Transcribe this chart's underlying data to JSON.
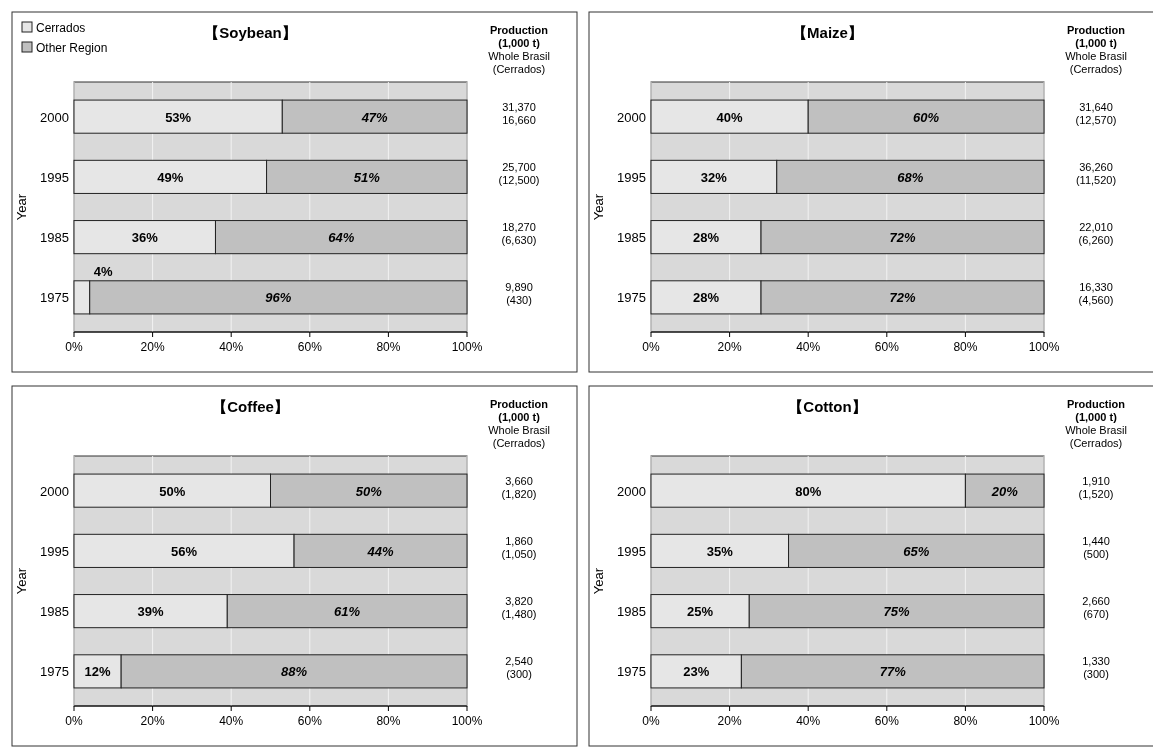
{
  "chart_data": [
    {
      "type": "bar",
      "title": "【Soybean】",
      "orientation": "horizontal",
      "stacked": true,
      "ylabel": "Year",
      "categories": [
        "2000",
        "1995",
        "1985",
        "1975"
      ],
      "xlim": [
        0,
        100
      ],
      "xticks": [
        {
          "value": 0,
          "label": "0%"
        },
        {
          "value": 20,
          "label": "20%"
        },
        {
          "value": 40,
          "label": "40%"
        },
        {
          "value": 60,
          "label": "60%"
        },
        {
          "value": 80,
          "label": "80%"
        },
        {
          "value": 100,
          "label": "100%"
        }
      ],
      "grid": "x",
      "legend": "top left",
      "series": [
        {
          "name": "Cerrados",
          "color": "#e6e6e6",
          "values": [
            53,
            49,
            36,
            4
          ],
          "value_labels": [
            "53%",
            "49%",
            "36%",
            "4%"
          ]
        },
        {
          "name": "Other Region",
          "color": "#c0c0c0",
          "values": [
            47,
            51,
            64,
            96
          ],
          "value_labels": [
            "47%",
            "51%",
            "64%",
            "96%"
          ]
        }
      ],
      "annotations": [
        "Production",
        "(1,000 t)",
        "Whole Brasil",
        "(Cerrados)",
        "31,370\n16,660",
        "25,700\n(12,500)",
        "18,270\n(6,630)",
        "9,890\n(430)"
      ]
    },
    {
      "type": "bar",
      "title": "【Maize】",
      "orientation": "horizontal",
      "stacked": true,
      "ylabel": "Year",
      "categories": [
        "2000",
        "1995",
        "1985",
        "1975"
      ],
      "xlim": [
        0,
        100
      ],
      "xticks": [
        {
          "value": 0,
          "label": "0%"
        },
        {
          "value": 20,
          "label": "20%"
        },
        {
          "value": 40,
          "label": "40%"
        },
        {
          "value": 60,
          "label": "60%"
        },
        {
          "value": 80,
          "label": "80%"
        },
        {
          "value": 100,
          "label": "100%"
        }
      ],
      "grid": "x",
      "series": [
        {
          "color": "#e6e6e6",
          "values": [
            40,
            32,
            28,
            28
          ],
          "value_labels": [
            "40%",
            "32%",
            "28%",
            "28%"
          ]
        },
        {
          "color": "#c0c0c0",
          "values": [
            60,
            68,
            72,
            72
          ],
          "value_labels": [
            "60%",
            "68%",
            "72%",
            "72%"
          ]
        }
      ],
      "annotations": [
        "Production",
        "(1,000 t)",
        "Whole Brasil",
        "(Cerrados)",
        "31,640\n(12,570)",
        "36,260\n(11,520)",
        "22,010\n(6,260)",
        "16,330\n(4,560)"
      ]
    },
    {
      "type": "bar",
      "title": "【Coffee】",
      "orientation": "horizontal",
      "stacked": true,
      "ylabel": "Year",
      "categories": [
        "2000",
        "1995",
        "1985",
        "1975"
      ],
      "xlim": [
        0,
        100
      ],
      "xticks": [
        {
          "value": 0,
          "label": "0%"
        },
        {
          "value": 20,
          "label": "20%"
        },
        {
          "value": 40,
          "label": "40%"
        },
        {
          "value": 60,
          "label": "60%"
        },
        {
          "value": 80,
          "label": "80%"
        },
        {
          "value": 100,
          "label": "100%"
        }
      ],
      "grid": "x",
      "series": [
        {
          "color": "#e6e6e6",
          "values": [
            50,
            56,
            39,
            12
          ],
          "value_labels": [
            "50%",
            "56%",
            "39%",
            "12%"
          ]
        },
        {
          "color": "#c0c0c0",
          "values": [
            50,
            44,
            61,
            88
          ],
          "value_labels": [
            "50%",
            "44%",
            "61%",
            "88%"
          ]
        }
      ],
      "annotations": [
        "Production",
        "(1,000 t)",
        "Whole Brasil",
        "(Cerrados)",
        "3,660\n(1,820)",
        "1,860\n(1,050)",
        "3,820\n(1,480)",
        "2,540\n(300)"
      ]
    },
    {
      "type": "bar",
      "title": "【Cotton】",
      "orientation": "horizontal",
      "stacked": true,
      "ylabel": "Year",
      "categories": [
        "2000",
        "1995",
        "1985",
        "1975"
      ],
      "xlim": [
        0,
        100
      ],
      "xticks": [
        {
          "value": 0,
          "label": "0%"
        },
        {
          "value": 20,
          "label": "20%"
        },
        {
          "value": 40,
          "label": "40%"
        },
        {
          "value": 60,
          "label": "60%"
        },
        {
          "value": 80,
          "label": "80%"
        },
        {
          "value": 100,
          "label": "100%"
        }
      ],
      "grid": "x",
      "series": [
        {
          "color": "#e6e6e6",
          "values": [
            80,
            35,
            25,
            23
          ],
          "value_labels": [
            "80%",
            "35%",
            "25%",
            "23%"
          ]
        },
        {
          "color": "#c0c0c0",
          "values": [
            20,
            65,
            75,
            77
          ],
          "value_labels": [
            "20%",
            "65%",
            "75%",
            "77%"
          ]
        }
      ],
      "annotations": [
        "Production",
        "(1,000 t)",
        "Whole Brasil",
        "(Cerrados)",
        "1,910\n(1,520)",
        "1,440\n(500)",
        "2,660\n(670)",
        "1,330\n(300)"
      ]
    }
  ]
}
